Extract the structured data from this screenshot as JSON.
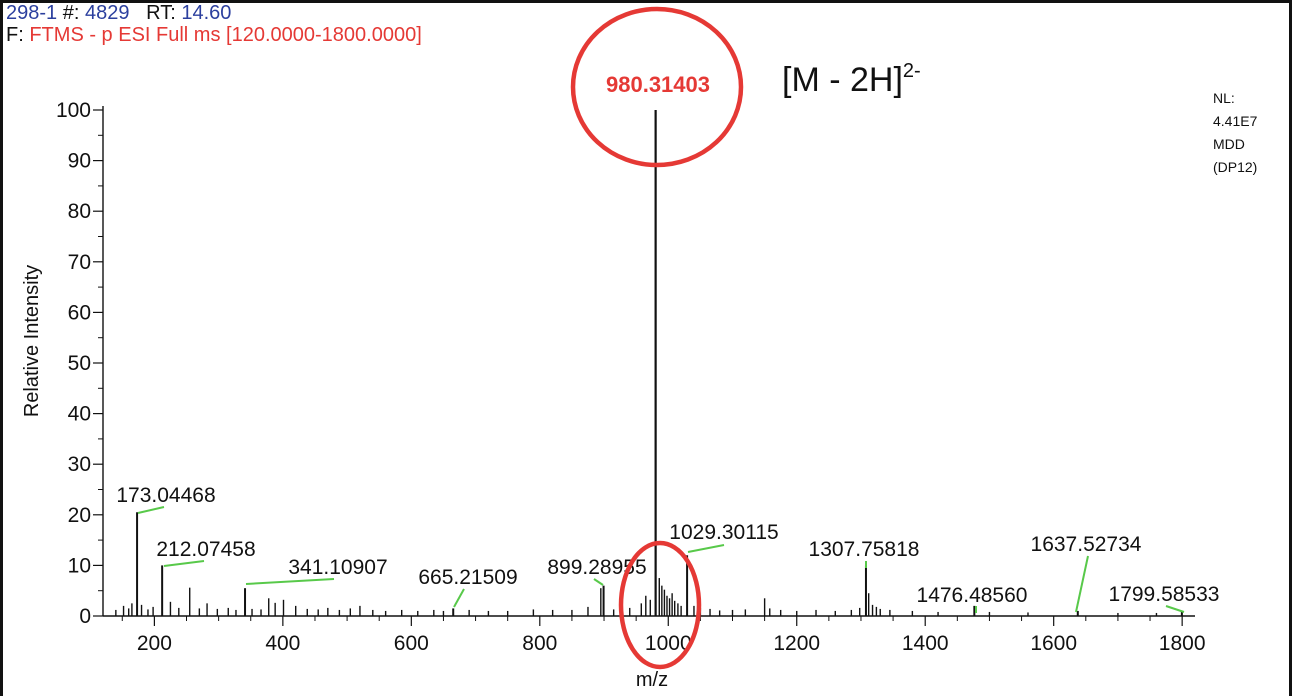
{
  "header": {
    "scan_label": "298-1",
    "scan_number_label": "#:",
    "scan_number": "4829",
    "rt_label": "RT:",
    "rt_value": "14.60",
    "filter_label": "F:",
    "filter_text": "FTMS - p ESI Full ms [120.0000-1800.0000]"
  },
  "annotation": {
    "ion_text": "[M - 2H]",
    "ion_charge": "2-",
    "highlight_color": "#e53935"
  },
  "normalization": {
    "lines": [
      "NL:",
      "4.41E7",
      "MDD",
      "(DP12)"
    ]
  },
  "chart_data": {
    "type": "line",
    "xlabel": "m/z",
    "ylabel": "Relative Intensity",
    "xlim": [
      120,
      1820
    ],
    "ylim": [
      0,
      100
    ],
    "xticks": [
      200,
      400,
      600,
      800,
      1000,
      1200,
      1400,
      1600,
      1800
    ],
    "yticks": [
      0,
      10,
      20,
      30,
      40,
      50,
      60,
      70,
      80,
      90,
      100
    ],
    "labeled_peaks": [
      {
        "mz": 980.31403,
        "label": "980.31403",
        "intensity": 100,
        "highlight": true
      },
      {
        "mz": 173.04468,
        "label": "173.04468",
        "intensity": 20.5
      },
      {
        "mz": 212.07458,
        "label": "212.07458",
        "intensity": 10
      },
      {
        "mz": 341.10907,
        "label": "341.10907",
        "intensity": 5.5
      },
      {
        "mz": 665.21509,
        "label": "665.21509",
        "intensity": 1.5
      },
      {
        "mz": 899.28955,
        "label": "899.28955",
        "intensity": 6
      },
      {
        "mz": 1029.30115,
        "label": "1029.30115",
        "intensity": 12
      },
      {
        "mz": 1307.75818,
        "label": "1307.75818",
        "intensity": 10
      },
      {
        "mz": 1476.4856,
        "label": "1476.48560",
        "intensity": 2
      },
      {
        "mz": 1637.52734,
        "label": "1637.52734",
        "intensity": 1
      },
      {
        "mz": 1799.58533,
        "label": "1799.58533",
        "intensity": 1
      }
    ],
    "minor_peaks": [
      {
        "mz": 140,
        "intensity": 1.2
      },
      {
        "mz": 152,
        "intensity": 2
      },
      {
        "mz": 160,
        "intensity": 1.5
      },
      {
        "mz": 165,
        "intensity": 2.5
      },
      {
        "mz": 180,
        "intensity": 2.2
      },
      {
        "mz": 190,
        "intensity": 1.3
      },
      {
        "mz": 198,
        "intensity": 1.8
      },
      {
        "mz": 225,
        "intensity": 2.8
      },
      {
        "mz": 238,
        "intensity": 1.6
      },
      {
        "mz": 255,
        "intensity": 5.6
      },
      {
        "mz": 270,
        "intensity": 1.5
      },
      {
        "mz": 282,
        "intensity": 2.5
      },
      {
        "mz": 298,
        "intensity": 1.4
      },
      {
        "mz": 315,
        "intensity": 1.6
      },
      {
        "mz": 327,
        "intensity": 1.2
      },
      {
        "mz": 352,
        "intensity": 1.4
      },
      {
        "mz": 366,
        "intensity": 1.3
      },
      {
        "mz": 378,
        "intensity": 3.5
      },
      {
        "mz": 388,
        "intensity": 2.6
      },
      {
        "mz": 401,
        "intensity": 3.2
      },
      {
        "mz": 420,
        "intensity": 2
      },
      {
        "mz": 438,
        "intensity": 1.4
      },
      {
        "mz": 455,
        "intensity": 1.3
      },
      {
        "mz": 470,
        "intensity": 1.6
      },
      {
        "mz": 488,
        "intensity": 1.2
      },
      {
        "mz": 505,
        "intensity": 1.5
      },
      {
        "mz": 520,
        "intensity": 2
      },
      {
        "mz": 540,
        "intensity": 1.2
      },
      {
        "mz": 560,
        "intensity": 1
      },
      {
        "mz": 585,
        "intensity": 1.2
      },
      {
        "mz": 610,
        "intensity": 1
      },
      {
        "mz": 635,
        "intensity": 1.2
      },
      {
        "mz": 650,
        "intensity": 1
      },
      {
        "mz": 690,
        "intensity": 1.2
      },
      {
        "mz": 720,
        "intensity": 1
      },
      {
        "mz": 750,
        "intensity": 1
      },
      {
        "mz": 790,
        "intensity": 1.3
      },
      {
        "mz": 820,
        "intensity": 1.2
      },
      {
        "mz": 850,
        "intensity": 1.2
      },
      {
        "mz": 875,
        "intensity": 1.8
      },
      {
        "mz": 895,
        "intensity": 5.5
      },
      {
        "mz": 915,
        "intensity": 1.3
      },
      {
        "mz": 940,
        "intensity": 1.6
      },
      {
        "mz": 958,
        "intensity": 2.5
      },
      {
        "mz": 965,
        "intensity": 4
      },
      {
        "mz": 972,
        "intensity": 3.2
      },
      {
        "mz": 986,
        "intensity": 7.5
      },
      {
        "mz": 990,
        "intensity": 6
      },
      {
        "mz": 994,
        "intensity": 5.2
      },
      {
        "mz": 998,
        "intensity": 4
      },
      {
        "mz": 1002,
        "intensity": 3.5
      },
      {
        "mz": 1006,
        "intensity": 4.5
      },
      {
        "mz": 1010,
        "intensity": 3
      },
      {
        "mz": 1015,
        "intensity": 2.5
      },
      {
        "mz": 1020,
        "intensity": 2
      },
      {
        "mz": 1040,
        "intensity": 2
      },
      {
        "mz": 1050,
        "intensity": 1.6
      },
      {
        "mz": 1065,
        "intensity": 1.4
      },
      {
        "mz": 1080,
        "intensity": 1.1
      },
      {
        "mz": 1100,
        "intensity": 1.2
      },
      {
        "mz": 1120,
        "intensity": 1.3
      },
      {
        "mz": 1150,
        "intensity": 3.5
      },
      {
        "mz": 1158,
        "intensity": 1.5
      },
      {
        "mz": 1175,
        "intensity": 1.2
      },
      {
        "mz": 1200,
        "intensity": 1
      },
      {
        "mz": 1230,
        "intensity": 1.2
      },
      {
        "mz": 1260,
        "intensity": 1
      },
      {
        "mz": 1285,
        "intensity": 1.2
      },
      {
        "mz": 1298,
        "intensity": 1.6
      },
      {
        "mz": 1312,
        "intensity": 4.5
      },
      {
        "mz": 1318,
        "intensity": 2.2
      },
      {
        "mz": 1324,
        "intensity": 1.8
      },
      {
        "mz": 1330,
        "intensity": 1.4
      },
      {
        "mz": 1345,
        "intensity": 1.2
      },
      {
        "mz": 1380,
        "intensity": 1
      },
      {
        "mz": 1420,
        "intensity": 0.8
      },
      {
        "mz": 1500,
        "intensity": 0.8
      },
      {
        "mz": 1560,
        "intensity": 0.7
      },
      {
        "mz": 1700,
        "intensity": 0.6
      },
      {
        "mz": 1760,
        "intensity": 0.6
      }
    ]
  }
}
